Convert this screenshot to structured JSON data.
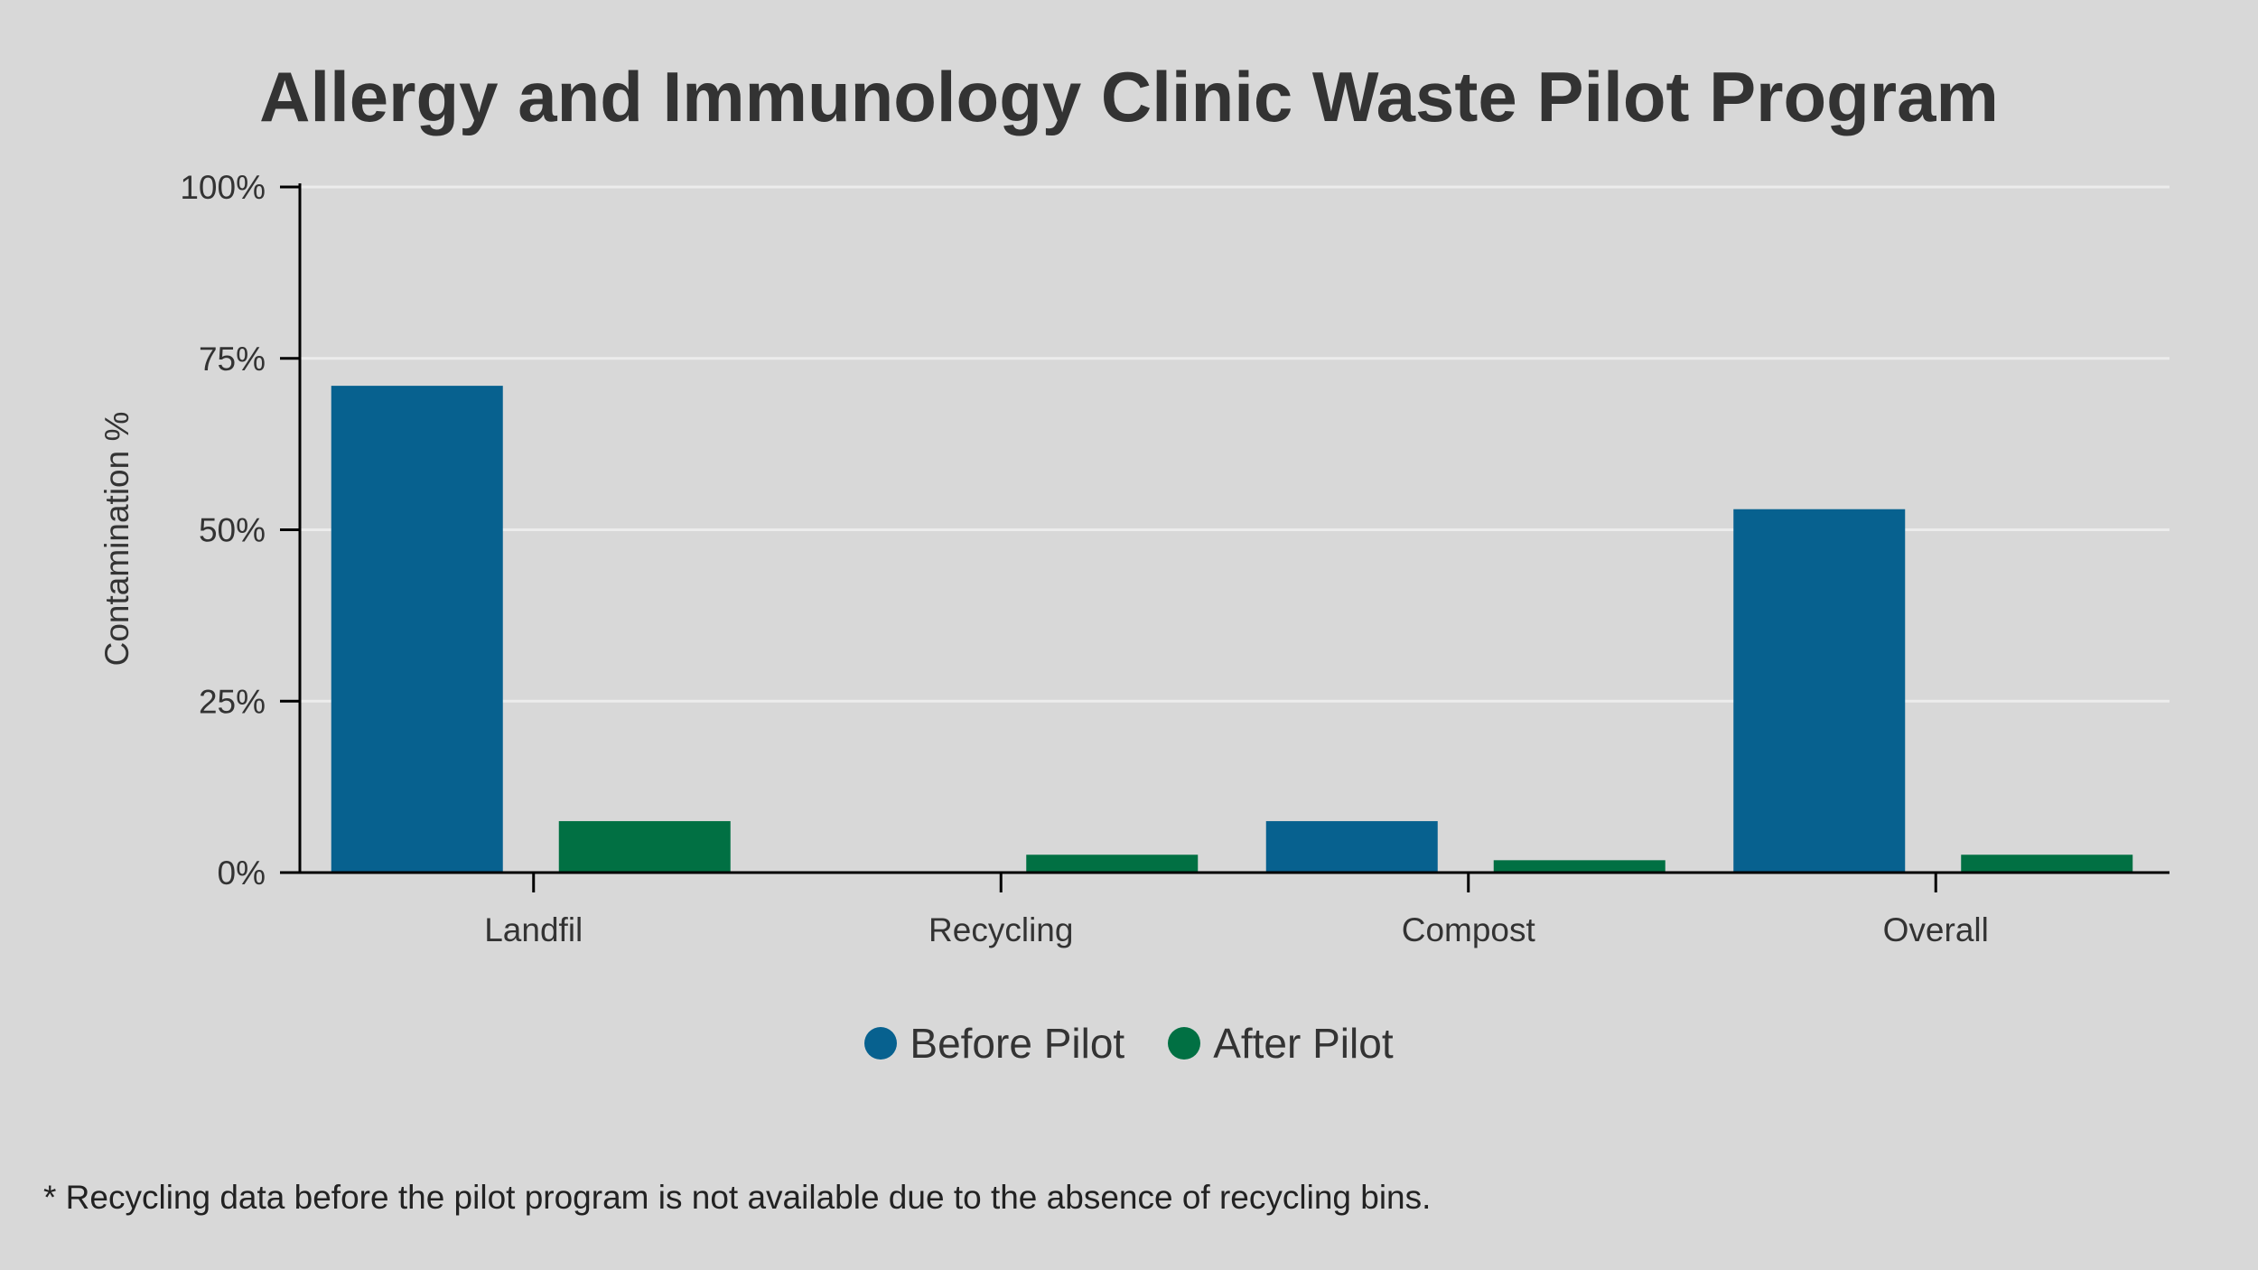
{
  "chart_data": {
    "type": "bar",
    "title": "Allergy and Immunology Clinic Waste Pilot Program",
    "xlabel": "",
    "ylabel": "Contamination %",
    "categories": [
      "Landfil",
      "Recycling",
      "Compost",
      "Overall"
    ],
    "series": [
      {
        "name": "Before Pilot",
        "color": "#07618f",
        "values": [
          71,
          null,
          7.5,
          53
        ]
      },
      {
        "name": "After Pilot",
        "color": "#017043",
        "values": [
          7.5,
          2.6,
          1.8,
          2.6
        ]
      }
    ],
    "ylim": [
      0,
      100
    ],
    "yticks": [
      0,
      25,
      50,
      75,
      100
    ],
    "ytick_labels": [
      "0%",
      "25%",
      "50%",
      "75%",
      "100%"
    ],
    "grid": "horizontal",
    "legend_placement": "bottom",
    "footnote": "* Recycling data before the pilot program is not available due to the absence of recycling bins."
  }
}
